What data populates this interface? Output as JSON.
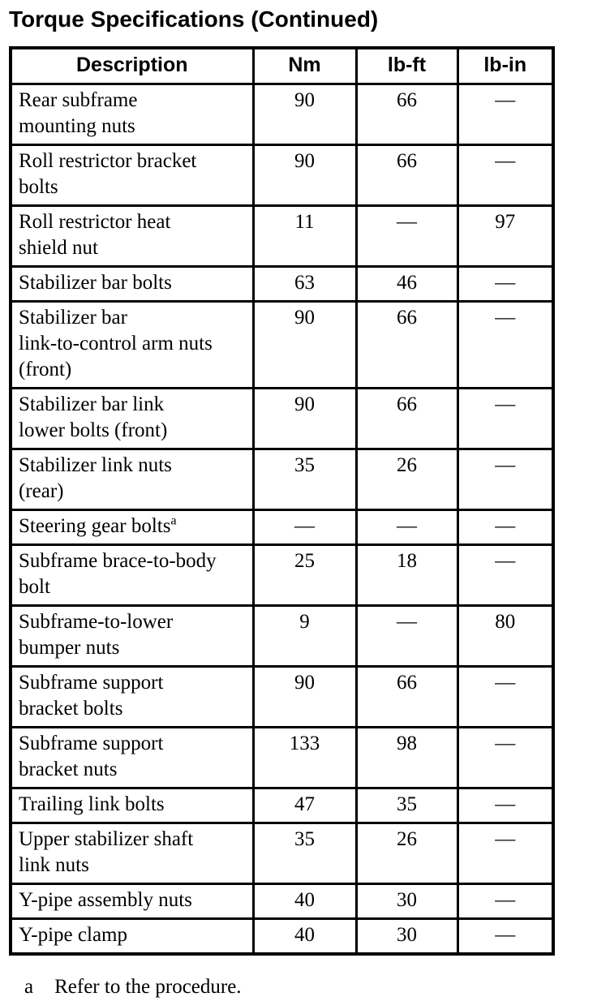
{
  "title": "Torque Specifications (Continued)",
  "table": {
    "headers": [
      "Description",
      "Nm",
      "lb-ft",
      "lb-in"
    ],
    "rows": [
      {
        "desc_lines": [
          "Rear subframe",
          "mounting nuts"
        ],
        "nm": "90",
        "lbft": "66",
        "lbin": "—"
      },
      {
        "desc_lines": [
          "Roll restrictor bracket",
          "bolts"
        ],
        "nm": "90",
        "lbft": "66",
        "lbin": "—"
      },
      {
        "desc_lines": [
          "Roll restrictor heat",
          "shield nut"
        ],
        "nm": "11",
        "lbft": "—",
        "lbin": "97"
      },
      {
        "desc_lines": [
          "Stabilizer bar bolts"
        ],
        "nm": "63",
        "lbft": "46",
        "lbin": "—"
      },
      {
        "desc_lines": [
          "Stabilizer bar",
          "link-to-control arm nuts",
          "(front)"
        ],
        "nm": "90",
        "lbft": "66",
        "lbin": "—"
      },
      {
        "desc_lines": [
          "Stabilizer bar link",
          "lower bolts (front)"
        ],
        "nm": "90",
        "lbft": "66",
        "lbin": "—"
      },
      {
        "desc_lines": [
          "Stabilizer link nuts",
          "(rear)"
        ],
        "nm": "35",
        "lbft": "26",
        "lbin": "—"
      },
      {
        "desc_lines": [
          "Steering gear bolts"
        ],
        "sup": "a",
        "nm": "—",
        "lbft": "—",
        "lbin": "—"
      },
      {
        "desc_lines": [
          "Subframe brace-to-body",
          "bolt"
        ],
        "nm": "25",
        "lbft": "18",
        "lbin": "—"
      },
      {
        "desc_lines": [
          "Subframe-to-lower",
          "bumper nuts"
        ],
        "nm": "9",
        "lbft": "—",
        "lbin": "80"
      },
      {
        "desc_lines": [
          "Subframe support",
          "bracket bolts"
        ],
        "nm": "90",
        "lbft": "66",
        "lbin": "—"
      },
      {
        "desc_lines": [
          "Subframe support",
          "bracket nuts"
        ],
        "nm": "133",
        "lbft": "98",
        "lbin": "—"
      },
      {
        "desc_lines": [
          "Trailing link bolts"
        ],
        "nm": "47",
        "lbft": "35",
        "lbin": "—"
      },
      {
        "desc_lines": [
          "Upper stabilizer shaft",
          "link nuts"
        ],
        "nm": "35",
        "lbft": "26",
        "lbin": "—"
      },
      {
        "desc_lines": [
          "Y-pipe assembly nuts"
        ],
        "nm": "40",
        "lbft": "30",
        "lbin": "—"
      },
      {
        "desc_lines": [
          "Y-pipe clamp"
        ],
        "nm": "40",
        "lbft": "30",
        "lbin": "—"
      }
    ]
  },
  "footnote": {
    "marker": "a",
    "text": "Refer to the procedure."
  }
}
